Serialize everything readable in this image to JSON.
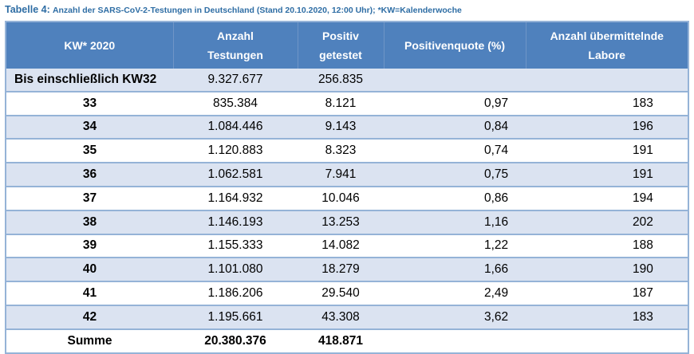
{
  "caption": {
    "label": "Tabelle 4:",
    "text": "Anzahl der SARS-CoV-2-Testungen in Deutschland (Stand 20.10.2020, 12:00 Uhr); *KW=Kalenderwoche"
  },
  "header": {
    "kw": "KW* 2020",
    "tests_line1": "Anzahl",
    "tests_line2": "Testungen",
    "positive_line1": "Positiv",
    "positive_line2": "getestet",
    "quote": "Positivenquote (%)",
    "labs_line1": "Anzahl übermittelnde",
    "labs_line2": "Labore"
  },
  "rows": [
    {
      "kw": "Bis einschließlich KW32",
      "tests": "9.327.677",
      "positive": "256.835",
      "quote": "",
      "labs": ""
    },
    {
      "kw": "33",
      "tests": "835.384",
      "positive": "8.121",
      "quote": "0,97",
      "labs": "183"
    },
    {
      "kw": "34",
      "tests": "1.084.446",
      "positive": "9.143",
      "quote": "0,84",
      "labs": "196"
    },
    {
      "kw": "35",
      "tests": "1.120.883",
      "positive": "8.323",
      "quote": "0,74",
      "labs": "191"
    },
    {
      "kw": "36",
      "tests": "1.062.581",
      "positive": "7.941",
      "quote": "0,75",
      "labs": "191"
    },
    {
      "kw": "37",
      "tests": "1.164.932",
      "positive": "10.046",
      "quote": "0,86",
      "labs": "194"
    },
    {
      "kw": "38",
      "tests": "1.146.193",
      "positive": "13.253",
      "quote": "1,16",
      "labs": "202"
    },
    {
      "kw": "39",
      "tests": "1.155.333",
      "positive": "14.082",
      "quote": "1,22",
      "labs": "188"
    },
    {
      "kw": "40",
      "tests": "1.101.080",
      "positive": "18.279",
      "quote": "1,66",
      "labs": "190"
    },
    {
      "kw": "41",
      "tests": "1.186.206",
      "positive": "29.540",
      "quote": "2,49",
      "labs": "187"
    },
    {
      "kw": "42",
      "tests": "1.195.661",
      "positive": "43.308",
      "quote": "3,62",
      "labs": "183"
    }
  ],
  "sum": {
    "kw": "Summe",
    "tests": "20.380.376",
    "positive": "418.871",
    "quote": "",
    "labs": ""
  },
  "colors": {
    "header_bg": "#4f81bd",
    "band": "#dbe3f1",
    "border": "#95b3d7",
    "caption": "#2e6da4"
  }
}
